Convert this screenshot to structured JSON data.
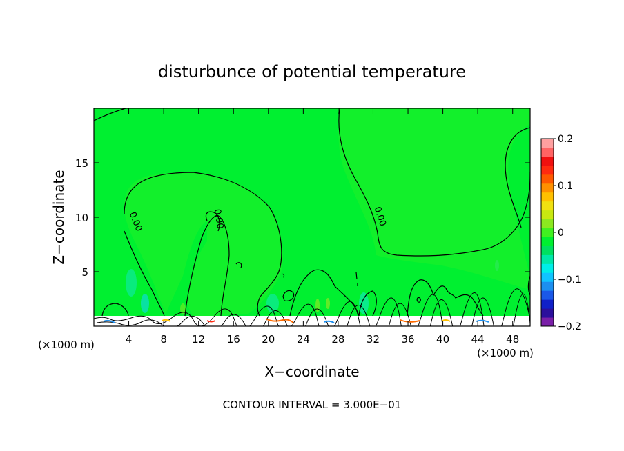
{
  "chart_data": {
    "type": "heatmap",
    "title": "disturbunce of potential temperature",
    "xlabel": "X−coordinate",
    "ylabel": "Z−coordinate",
    "x_unit_left": "(×1000 m)",
    "x_unit_right": "(×1000 m)",
    "xlim": [
      0,
      50
    ],
    "ylim": [
      0,
      20
    ],
    "x_ticks": [
      4,
      8,
      12,
      16,
      20,
      24,
      28,
      32,
      36,
      40,
      44,
      48
    ],
    "x_tick_labels": [
      "4",
      "8",
      "12",
      "16",
      "20",
      "24",
      "28",
      "32",
      "36",
      "40",
      "44",
      "48"
    ],
    "y_ticks": [
      5,
      10,
      15
    ],
    "y_tick_labels": [
      "5",
      "10",
      "15"
    ],
    "contour_labels": [
      {
        "text": "0.00",
        "x": 4.5,
        "y": 9.5,
        "angle": 68
      },
      {
        "text": "0.00",
        "x": 14.0,
        "y": 9.8,
        "angle": 80
      },
      {
        "text": "0.00",
        "x": 32.5,
        "y": 10.0,
        "angle": 72
      }
    ],
    "contour_interval_text": "CONTOUR INTERVAL = 3.000E−01",
    "colorbar": {
      "range": [
        -0.2,
        0.2
      ],
      "tick_values": [
        0.2,
        0.1,
        0,
        -0.1,
        -0.2
      ],
      "tick_labels": [
        "0.2",
        "0.1",
        "0",
        "−0.1",
        "−0.2"
      ],
      "colors": [
        "#7a1fa8",
        "#2b0f9c",
        "#1020c8",
        "#1a58e8",
        "#1c8ff0",
        "#10c4ff",
        "#00eee8",
        "#00e8a8",
        "#00e060",
        "#00f030",
        "#40f020",
        "#8ce820",
        "#c8e810",
        "#f0e010",
        "#ffc000",
        "#ff9000",
        "#ff5800",
        "#ff2a10",
        "#f01010",
        "#ff6464",
        "#ffa0a0"
      ]
    },
    "field_color": "#00f030"
  }
}
